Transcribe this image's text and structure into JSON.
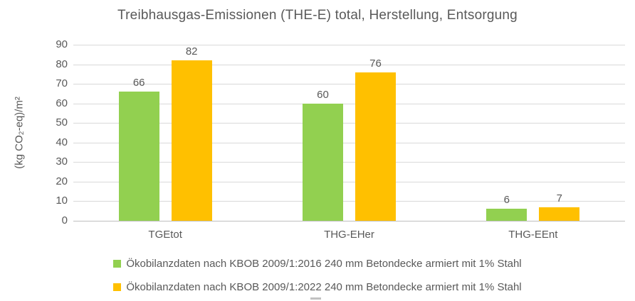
{
  "chart_data": {
    "type": "bar",
    "title": "Treibhausgas-Emissionen (THE-E) total, Herstellung, Entsorgung",
    "xlabel": "",
    "ylabel": "(kg CO₂-eq)/m²",
    "categories": [
      "TGEtot",
      "THG-EHer",
      "THG-EEnt"
    ],
    "series": [
      {
        "name": "Ökobilanzdaten nach KBOB 2009/1:2016 240 mm Betondecke armiert mit 1% Stahl",
        "values": [
          66,
          60,
          6
        ],
        "color": "#92D050"
      },
      {
        "name": "Ökobilanzdaten nach KBOB 2009/1:2022 240 mm Betondecke armiert mit 1% Stahl",
        "values": [
          82,
          76,
          7
        ],
        "color": "#FFC000"
      }
    ],
    "ylim": [
      0,
      90
    ],
    "ytick_step": 10,
    "grid": true,
    "data_labels": true,
    "legend_position": "bottom"
  },
  "colors": {
    "gridline": "#D9D9D9",
    "axis_line": "#BFBFBF",
    "text": "#595959",
    "background": "#FFFFFF"
  }
}
